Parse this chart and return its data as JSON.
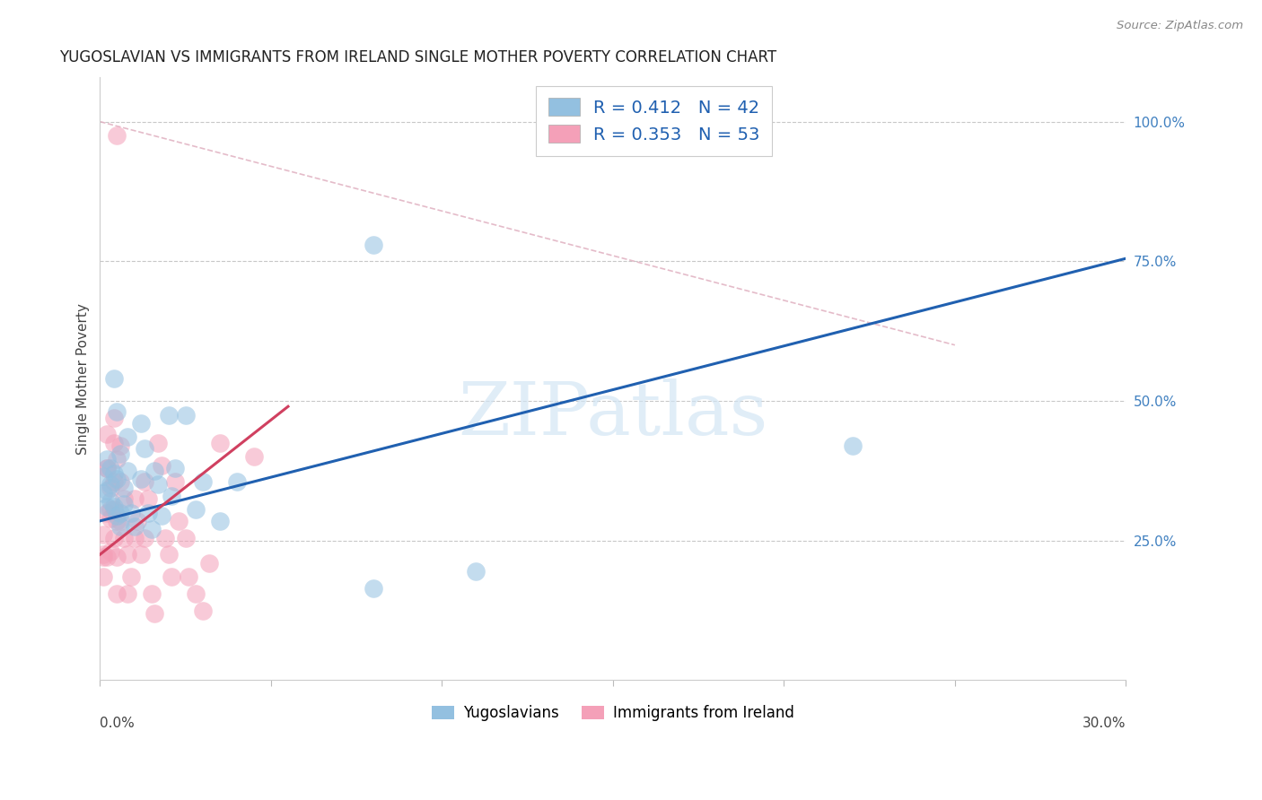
{
  "title": "YUGOSLAVIAN VS IMMIGRANTS FROM IRELAND SINGLE MOTHER POVERTY CORRELATION CHART",
  "source": "Source: ZipAtlas.com",
  "ylabel": "Single Mother Poverty",
  "ytick_labels": [
    "25.0%",
    "50.0%",
    "75.0%",
    "100.0%"
  ],
  "ytick_values": [
    0.25,
    0.5,
    0.75,
    1.0
  ],
  "xlim": [
    0.0,
    0.3
  ],
  "ylim": [
    0.0,
    1.08
  ],
  "legend_label_1": "Yugoslavians",
  "legend_label_2": "Immigrants from Ireland",
  "watermark": "ZIPatlas",
  "blue_color": "#93c0e0",
  "pink_color": "#f4a0b8",
  "blue_line_color": "#2060b0",
  "pink_line_color": "#d04060",
  "diag_line_color": "#e0b0c0",
  "blue_scatter": [
    [
      0.001,
      0.365
    ],
    [
      0.001,
      0.335
    ],
    [
      0.002,
      0.395
    ],
    [
      0.002,
      0.34
    ],
    [
      0.002,
      0.31
    ],
    [
      0.003,
      0.38
    ],
    [
      0.003,
      0.35
    ],
    [
      0.003,
      0.32
    ],
    [
      0.004,
      0.54
    ],
    [
      0.004,
      0.37
    ],
    [
      0.004,
      0.31
    ],
    [
      0.005,
      0.48
    ],
    [
      0.005,
      0.36
    ],
    [
      0.005,
      0.295
    ],
    [
      0.006,
      0.405
    ],
    [
      0.006,
      0.3
    ],
    [
      0.006,
      0.275
    ],
    [
      0.007,
      0.345
    ],
    [
      0.007,
      0.315
    ],
    [
      0.008,
      0.375
    ],
    [
      0.008,
      0.435
    ],
    [
      0.009,
      0.3
    ],
    [
      0.01,
      0.275
    ],
    [
      0.012,
      0.46
    ],
    [
      0.012,
      0.36
    ],
    [
      0.013,
      0.415
    ],
    [
      0.014,
      0.3
    ],
    [
      0.015,
      0.27
    ],
    [
      0.016,
      0.375
    ],
    [
      0.017,
      0.35
    ],
    [
      0.018,
      0.295
    ],
    [
      0.02,
      0.475
    ],
    [
      0.021,
      0.33
    ],
    [
      0.022,
      0.38
    ],
    [
      0.025,
      0.475
    ],
    [
      0.028,
      0.305
    ],
    [
      0.03,
      0.355
    ],
    [
      0.035,
      0.285
    ],
    [
      0.04,
      0.355
    ],
    [
      0.08,
      0.165
    ],
    [
      0.11,
      0.195
    ],
    [
      0.22,
      0.42
    ]
  ],
  "blue_outlier": [
    0.08,
    0.78
  ],
  "pink_scatter": [
    [
      0.001,
      0.225
    ],
    [
      0.001,
      0.26
    ],
    [
      0.001,
      0.185
    ],
    [
      0.001,
      0.22
    ],
    [
      0.002,
      0.3
    ],
    [
      0.002,
      0.22
    ],
    [
      0.002,
      0.38
    ],
    [
      0.002,
      0.44
    ],
    [
      0.002,
      0.38
    ],
    [
      0.003,
      0.305
    ],
    [
      0.003,
      0.345
    ],
    [
      0.003,
      0.29
    ],
    [
      0.003,
      0.23
    ],
    [
      0.004,
      0.425
    ],
    [
      0.004,
      0.47
    ],
    [
      0.004,
      0.355
    ],
    [
      0.004,
      0.255
    ],
    [
      0.004,
      0.305
    ],
    [
      0.005,
      0.395
    ],
    [
      0.005,
      0.285
    ],
    [
      0.005,
      0.22
    ],
    [
      0.005,
      0.155
    ],
    [
      0.006,
      0.355
    ],
    [
      0.006,
      0.42
    ],
    [
      0.006,
      0.285
    ],
    [
      0.007,
      0.325
    ],
    [
      0.007,
      0.255
    ],
    [
      0.008,
      0.225
    ],
    [
      0.008,
      0.155
    ],
    [
      0.009,
      0.185
    ],
    [
      0.01,
      0.255
    ],
    [
      0.01,
      0.325
    ],
    [
      0.011,
      0.285
    ],
    [
      0.012,
      0.225
    ],
    [
      0.013,
      0.355
    ],
    [
      0.013,
      0.255
    ],
    [
      0.014,
      0.325
    ],
    [
      0.015,
      0.155
    ],
    [
      0.016,
      0.12
    ],
    [
      0.017,
      0.425
    ],
    [
      0.018,
      0.385
    ],
    [
      0.019,
      0.255
    ],
    [
      0.02,
      0.225
    ],
    [
      0.021,
      0.185
    ],
    [
      0.022,
      0.355
    ],
    [
      0.023,
      0.285
    ],
    [
      0.025,
      0.255
    ],
    [
      0.026,
      0.185
    ],
    [
      0.028,
      0.155
    ],
    [
      0.03,
      0.125
    ],
    [
      0.032,
      0.21
    ],
    [
      0.035,
      0.425
    ],
    [
      0.045,
      0.4
    ]
  ],
  "pink_outlier": [
    0.005,
    0.975
  ],
  "blue_line_x": [
    0.0,
    0.3
  ],
  "blue_line_y": [
    0.285,
    0.755
  ],
  "pink_line_x": [
    0.0,
    0.055
  ],
  "pink_line_y": [
    0.225,
    0.49
  ],
  "diag_line_x": [
    0.0,
    0.25
  ],
  "diag_line_y": [
    1.0,
    0.6
  ]
}
